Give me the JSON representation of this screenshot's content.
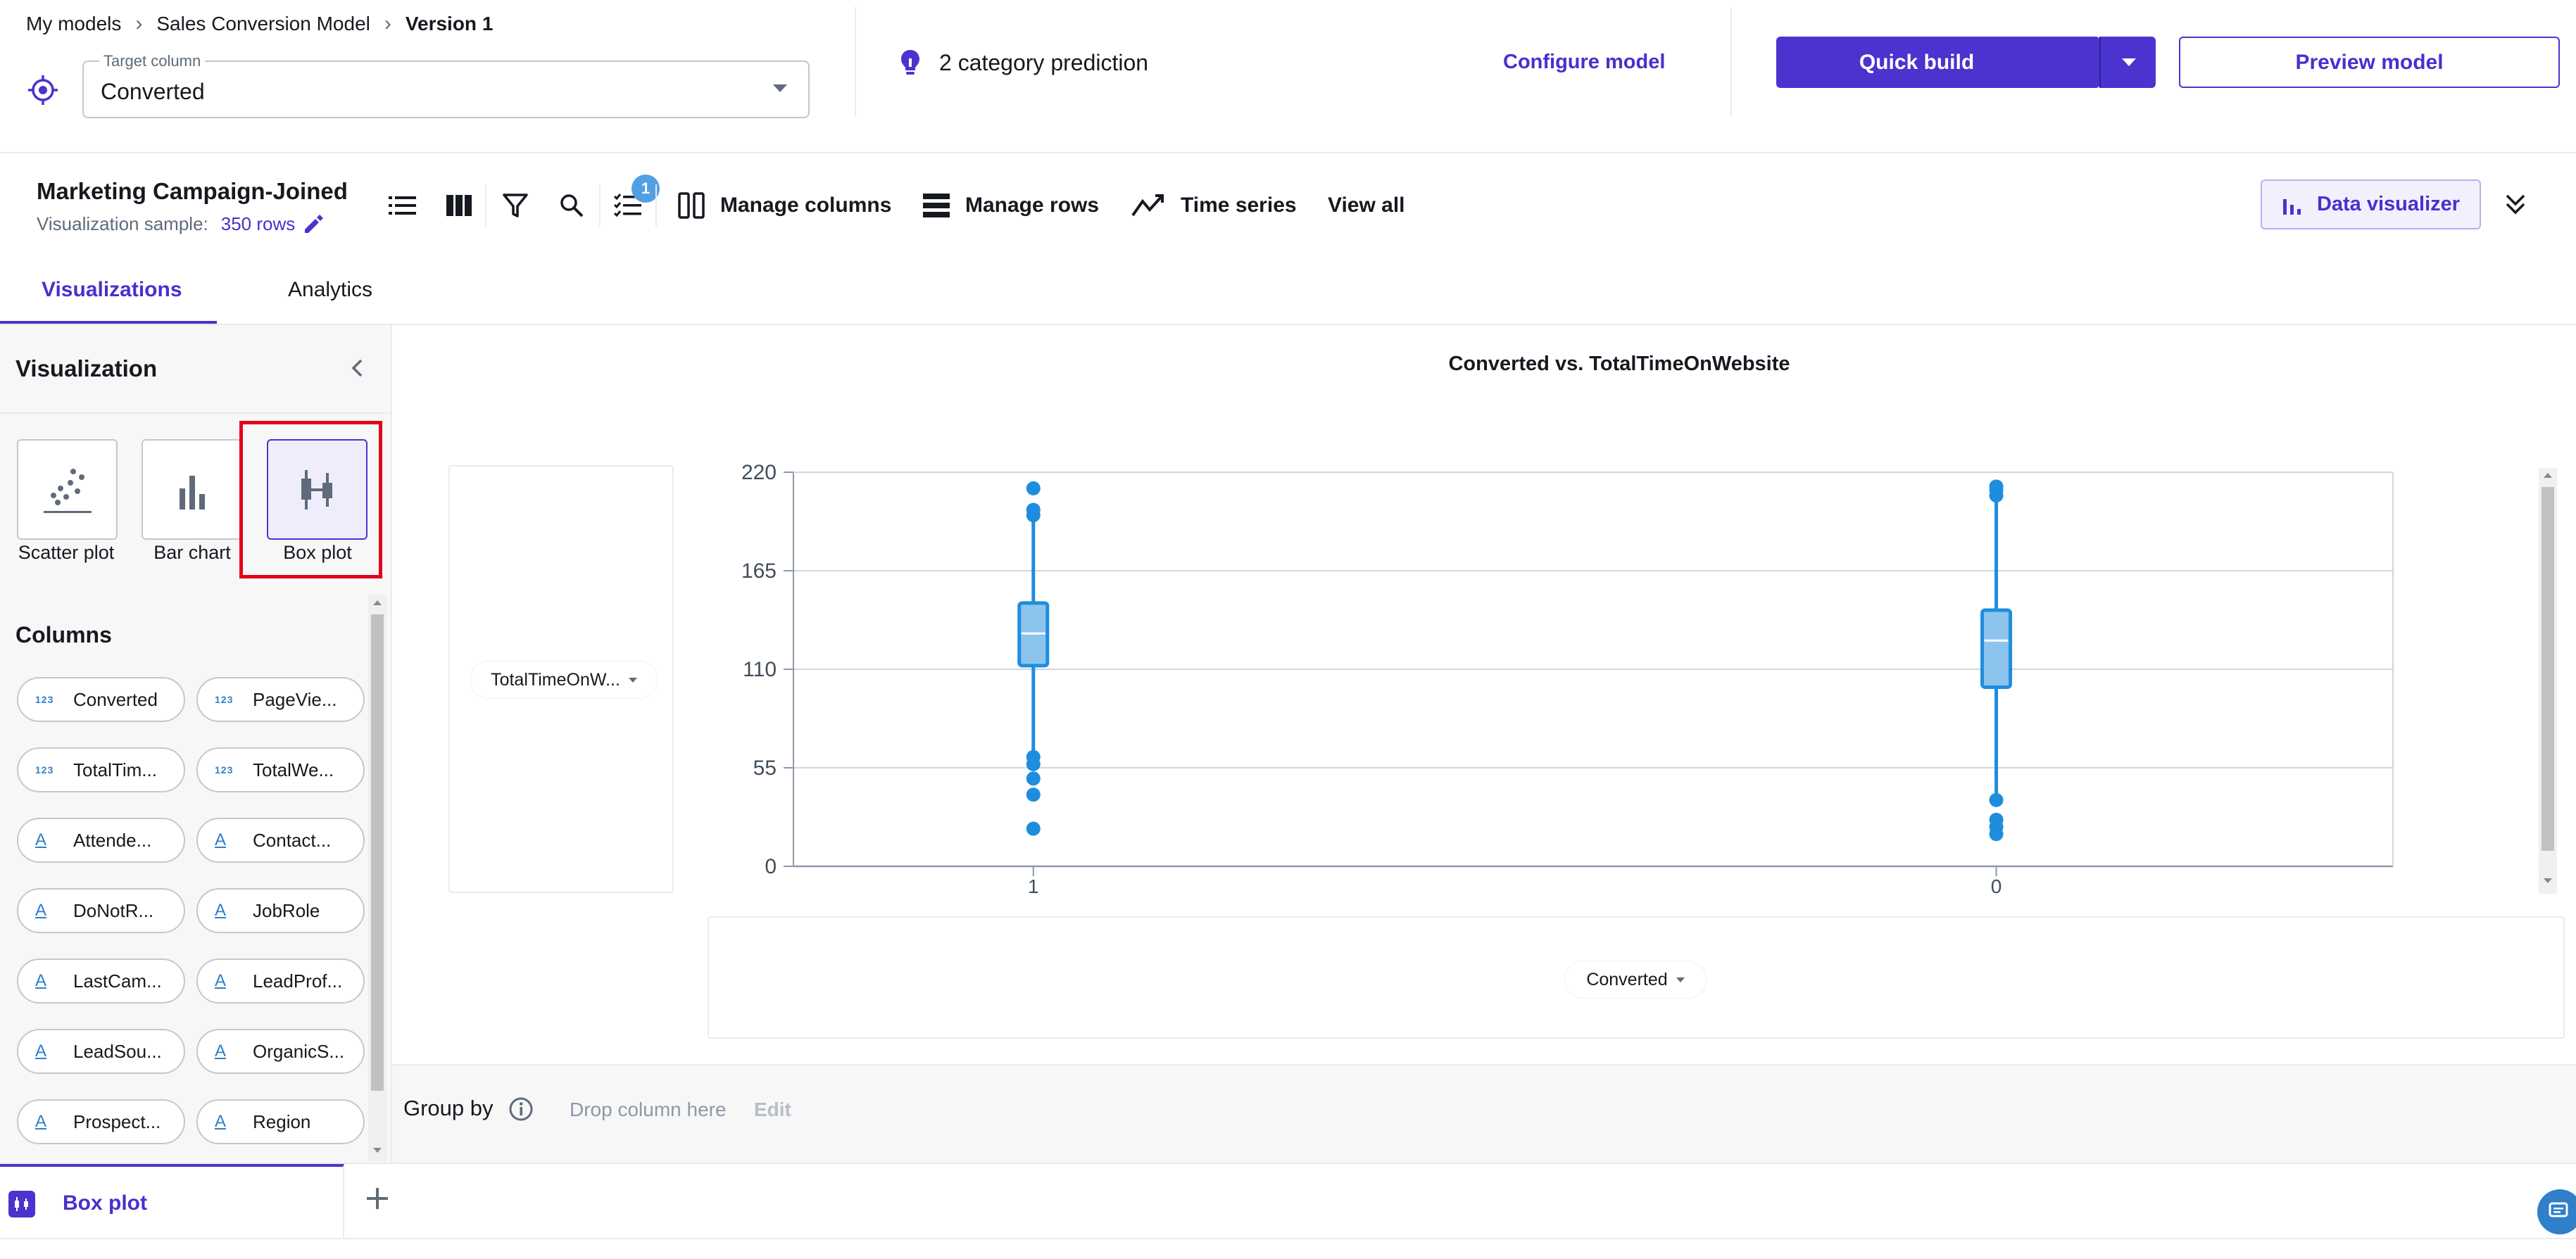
{
  "breadcrumb": {
    "items": [
      "My models",
      "Sales Conversion Model"
    ],
    "current": "Version 1"
  },
  "target": {
    "legend": "Target column",
    "value": "Converted"
  },
  "prediction": {
    "text": "2 category prediction"
  },
  "header": {
    "configure": "Configure model",
    "quick_build": "Quick build",
    "preview": "Preview model"
  },
  "dataset": {
    "title": "Marketing Campaign-Joined",
    "sample_label": "Visualization sample:",
    "rows": "350 rows"
  },
  "toolbar": {
    "badge": "1",
    "manage_columns": "Manage columns",
    "manage_rows": "Manage rows",
    "time_series": "Time series",
    "view_all": "View all",
    "data_visualizer": "Data visualizer"
  },
  "tabs": [
    "Visualizations",
    "Analytics"
  ],
  "panel": {
    "title": "Visualization",
    "vis_types": [
      "Scatter plot",
      "Bar chart",
      "Box plot"
    ],
    "columns_title": "Columns",
    "columns": [
      {
        "type": "123",
        "label": "Converted"
      },
      {
        "type": "123",
        "label": "PageVie..."
      },
      {
        "type": "123",
        "label": "TotalTim..."
      },
      {
        "type": "123",
        "label": "TotalWe..."
      },
      {
        "type": "A",
        "label": "Attende..."
      },
      {
        "type": "A",
        "label": "Contact..."
      },
      {
        "type": "A",
        "label": "DoNotR..."
      },
      {
        "type": "A",
        "label": "JobRole"
      },
      {
        "type": "A",
        "label": "LastCam..."
      },
      {
        "type": "A",
        "label": "LeadProf..."
      },
      {
        "type": "A",
        "label": "LeadSou..."
      },
      {
        "type": "A",
        "label": "OrganicS..."
      },
      {
        "type": "A",
        "label": "Prospect..."
      },
      {
        "type": "A",
        "label": "Region"
      }
    ]
  },
  "chart": {
    "y_selector": "TotalTimeOnW...",
    "x_selector": "Converted"
  },
  "chart_data": {
    "type": "box",
    "title": "Converted vs. TotalTimeOnWebsite",
    "ylim": [
      0,
      220
    ],
    "yticks": [
      0,
      55,
      110,
      165,
      220
    ],
    "categories": [
      "1",
      "0"
    ],
    "boxes": [
      {
        "category": "1",
        "q1": 112,
        "median": 130,
        "q3": 147,
        "whisker_low": 62,
        "whisker_high": 195,
        "outliers": [
          21,
          40,
          49,
          57,
          61,
          196,
          199,
          211
        ]
      },
      {
        "category": "0",
        "q1": 100,
        "median": 126,
        "q3": 143,
        "whisker_low": 38,
        "whisker_high": 204,
        "outliers": [
          18,
          22,
          26,
          37,
          207,
          210,
          212
        ]
      }
    ],
    "color": "#1f8ddd",
    "grid": true
  },
  "groupby": {
    "label": "Group by",
    "drop": "Drop column here",
    "edit": "Edit"
  },
  "bottom_tab": {
    "label": "Box plot"
  },
  "colors": {
    "accent": "#4a33cf",
    "series": "#1f8ddd",
    "highlight": "#e3001b"
  }
}
